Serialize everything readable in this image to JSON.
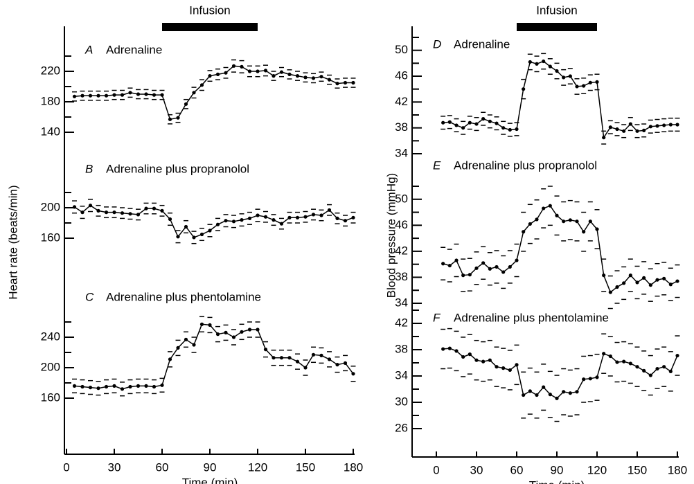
{
  "chart_data": [
    {
      "type": "line",
      "letter": "A",
      "title": "Adrenaline",
      "annotation": "Infusion",
      "infusion": [
        60,
        120
      ],
      "color": "#000000",
      "x": [
        5,
        10,
        15,
        20,
        25,
        30,
        35,
        40,
        45,
        50,
        55,
        60,
        65,
        70,
        75,
        80,
        85,
        90,
        95,
        100,
        105,
        110,
        115,
        120,
        125,
        130,
        135,
        140,
        145,
        150,
        155,
        160,
        165,
        170,
        175,
        180
      ],
      "values": [
        187,
        188,
        188,
        188,
        188,
        189,
        189,
        192,
        190,
        190,
        189,
        189,
        157,
        159,
        177,
        192,
        202,
        214,
        216,
        218,
        227,
        226,
        220,
        220,
        221,
        214,
        219,
        216,
        214,
        212,
        211,
        213,
        209,
        204,
        205,
        205
      ],
      "errors": [
        6,
        6,
        6,
        6,
        6,
        6,
        6,
        6,
        6,
        6,
        6,
        6,
        6,
        6,
        6,
        7,
        7,
        7,
        7,
        7,
        8,
        8,
        7,
        7,
        7,
        6,
        6,
        6,
        6,
        6,
        6,
        6,
        6,
        6,
        6,
        6
      ],
      "ylim": [
        130,
        250
      ],
      "yticks": [
        140,
        180,
        220
      ],
      "minor_yticks": [
        160,
        200,
        240
      ]
    },
    {
      "type": "line",
      "letter": "B",
      "title": "Adrenaline plus propranolol",
      "ylabel": "Heart rate (beats/min)",
      "color": "#000000",
      "x": [
        5,
        10,
        15,
        20,
        25,
        30,
        35,
        40,
        45,
        50,
        55,
        60,
        65,
        70,
        75,
        80,
        85,
        90,
        95,
        100,
        105,
        110,
        115,
        120,
        125,
        130,
        135,
        140,
        145,
        150,
        155,
        160,
        165,
        170,
        175,
        180
      ],
      "values": [
        201,
        194,
        203,
        196,
        194,
        194,
        193,
        192,
        191,
        199,
        199,
        196,
        185,
        162,
        175,
        161,
        165,
        170,
        178,
        183,
        182,
        184,
        186,
        190,
        188,
        184,
        179,
        187,
        187,
        188,
        191,
        190,
        197,
        186,
        183,
        187
      ],
      "errors": [
        8,
        8,
        8,
        7,
        7,
        7,
        7,
        7,
        7,
        7,
        7,
        7,
        8,
        8,
        8,
        8,
        8,
        8,
        8,
        8,
        8,
        8,
        8,
        8,
        7,
        7,
        7,
        7,
        7,
        7,
        7,
        7,
        7,
        7,
        7,
        7
      ],
      "ylim": [
        150,
        230
      ],
      "yticks": [
        160,
        200
      ],
      "minor_yticks": [
        180,
        220
      ]
    },
    {
      "type": "line",
      "letter": "C",
      "title": "Adrenaline plus phentolamine",
      "xlabel": "Time (min)",
      "color": "#000000",
      "x": [
        5,
        10,
        15,
        20,
        25,
        30,
        35,
        40,
        45,
        50,
        55,
        60,
        65,
        70,
        75,
        80,
        85,
        90,
        95,
        100,
        105,
        110,
        115,
        120,
        125,
        130,
        135,
        140,
        145,
        150,
        155,
        160,
        165,
        170,
        175,
        180
      ],
      "values": [
        176,
        175,
        174,
        173,
        175,
        176,
        172,
        175,
        176,
        176,
        175,
        177,
        211,
        226,
        237,
        230,
        257,
        256,
        244,
        246,
        240,
        247,
        250,
        250,
        224,
        213,
        213,
        213,
        208,
        200,
        217,
        216,
        211,
        204,
        206,
        192
      ],
      "errors": [
        9,
        9,
        9,
        9,
        9,
        9,
        9,
        9,
        9,
        9,
        9,
        9,
        10,
        10,
        10,
        10,
        10,
        10,
        10,
        10,
        10,
        10,
        10,
        10,
        10,
        10,
        10,
        10,
        10,
        10,
        10,
        10,
        10,
        10,
        10,
        10
      ],
      "ylim": [
        140,
        270
      ],
      "yticks": [
        160,
        200,
        240
      ],
      "minor_yticks": [
        180,
        220,
        260
      ],
      "xlim": [
        0,
        180
      ],
      "xticks": [
        0,
        30,
        60,
        90,
        120,
        150,
        180
      ]
    },
    {
      "type": "line",
      "letter": "D",
      "title": "Adrenaline",
      "annotation": "Infusion",
      "infusion": [
        60,
        120
      ],
      "color": "#000000",
      "x": [
        5,
        10,
        15,
        20,
        25,
        30,
        35,
        40,
        45,
        50,
        55,
        60,
        65,
        70,
        75,
        80,
        85,
        90,
        95,
        100,
        105,
        110,
        115,
        120,
        125,
        130,
        135,
        140,
        145,
        150,
        155,
        160,
        165,
        170,
        175,
        180
      ],
      "values": [
        38.8,
        38.9,
        38.4,
        38.0,
        38.8,
        38.6,
        39.4,
        39.0,
        38.7,
        38.0,
        37.7,
        37.8,
        44.0,
        48.2,
        47.9,
        48.3,
        47.5,
        46.8,
        45.8,
        46.0,
        44.4,
        44.5,
        45.0,
        45.1,
        36.5,
        38.1,
        37.8,
        37.5,
        38.6,
        37.5,
        37.6,
        38.2,
        38.3,
        38.4,
        38.5,
        38.5
      ],
      "errors": [
        1,
        1,
        1,
        1,
        1,
        1,
        1,
        1,
        1,
        1,
        1,
        1,
        1.5,
        1.2,
        1.2,
        1.2,
        1.2,
        1.2,
        1.2,
        1.2,
        1.2,
        1.2,
        1.2,
        1.2,
        1,
        1,
        1,
        1,
        1,
        1,
        1,
        1,
        1,
        1,
        1,
        1
      ],
      "ylim": [
        34,
        52
      ],
      "yticks": [
        34,
        38,
        42,
        46,
        50
      ],
      "minor_yticks": [
        36,
        40,
        44,
        48,
        52
      ]
    },
    {
      "type": "line",
      "letter": "E",
      "title": "Adrenaline plus propranolol",
      "ylabel": "Blood pressure (mmHg)",
      "color": "#000000",
      "x": [
        5,
        10,
        15,
        20,
        25,
        30,
        35,
        40,
        45,
        50,
        55,
        60,
        65,
        70,
        75,
        80,
        85,
        90,
        95,
        100,
        105,
        110,
        115,
        120,
        125,
        130,
        135,
        140,
        145,
        150,
        155,
        160,
        165,
        170,
        175,
        180
      ],
      "values": [
        40.1,
        39.8,
        40.6,
        38.3,
        38.4,
        39.4,
        40.2,
        39.3,
        39.6,
        38.8,
        39.6,
        40.6,
        45.0,
        46.2,
        46.9,
        48.6,
        49.0,
        47.5,
        46.6,
        46.8,
        46.6,
        45.0,
        46.6,
        45.4,
        38.3,
        35.7,
        36.5,
        37.1,
        38.3,
        37.2,
        37.9,
        36.8,
        37.6,
        37.8,
        36.9,
        37.4
      ],
      "errors": [
        2.5,
        2.5,
        2.5,
        2.5,
        2.5,
        2.5,
        2.5,
        2.5,
        2.5,
        2.5,
        2.5,
        2.5,
        3,
        3,
        3,
        3,
        3,
        3,
        3,
        3,
        3,
        3,
        3,
        3,
        2.5,
        2.5,
        2.5,
        2.5,
        2.5,
        2.5,
        2.5,
        2.5,
        2.5,
        2.5,
        2.5,
        2.5
      ],
      "ylim": [
        34,
        52
      ],
      "yticks": [
        34,
        38,
        42,
        46,
        50
      ],
      "minor_yticks": [
        36,
        40,
        44,
        48,
        52
      ]
    },
    {
      "type": "line",
      "letter": "F",
      "title": "Adrenaline plus phentolamine",
      "xlabel": "Time (min)",
      "color": "#000000",
      "x": [
        5,
        10,
        15,
        20,
        25,
        30,
        35,
        40,
        45,
        50,
        55,
        60,
        65,
        70,
        75,
        80,
        85,
        90,
        95,
        100,
        105,
        110,
        115,
        120,
        125,
        130,
        135,
        140,
        145,
        150,
        155,
        160,
        165,
        170,
        175,
        180
      ],
      "values": [
        38.1,
        38.2,
        37.8,
        36.9,
        37.3,
        36.4,
        36.2,
        36.4,
        35.4,
        35.2,
        34.9,
        35.7,
        31.1,
        31.7,
        31.1,
        32.3,
        31.2,
        30.6,
        31.6,
        31.4,
        31.6,
        33.5,
        33.6,
        33.8,
        37.4,
        37.0,
        36.1,
        36.2,
        35.9,
        35.4,
        34.8,
        34.1,
        35.1,
        35.4,
        34.7,
        37.1
      ],
      "errors": [
        3,
        3,
        3,
        3,
        3,
        3,
        3,
        3,
        3,
        3,
        3,
        3,
        3.5,
        3.5,
        3.5,
        3.5,
        3.5,
        3.5,
        3.5,
        3.5,
        3.5,
        3.5,
        3.5,
        3.5,
        3,
        3,
        3,
        3,
        3,
        3,
        3,
        3,
        3,
        3,
        3,
        3
      ],
      "ylim": [
        26,
        44
      ],
      "yticks": [
        26,
        30,
        34,
        38,
        42
      ],
      "minor_yticks": [
        28,
        32,
        36,
        40,
        44
      ],
      "xlim": [
        0,
        180
      ],
      "xticks": [
        0,
        30,
        60,
        90,
        120,
        150,
        180
      ]
    }
  ]
}
